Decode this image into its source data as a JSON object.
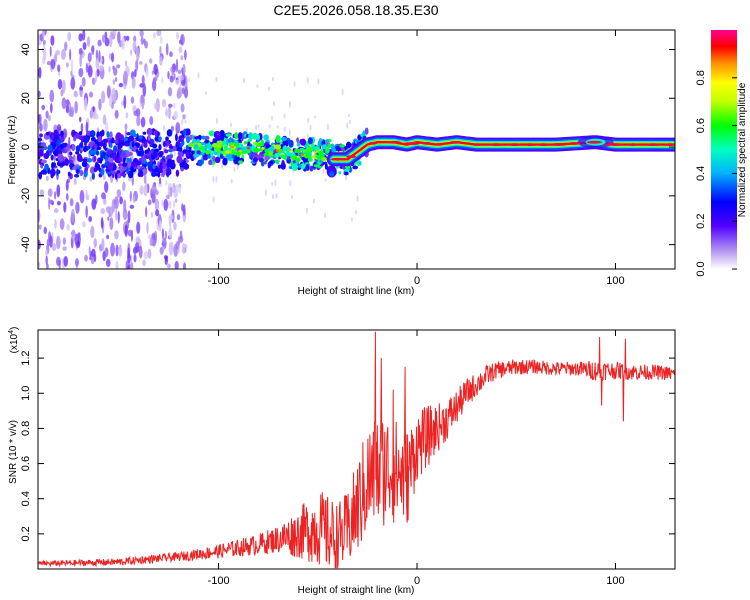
{
  "page_title": "C2E5.2026.058.18.35.E30",
  "chart_data": [
    {
      "type": "heatmap",
      "name": "spectrogram",
      "title": "C2E5.2026.058.18.35.E30",
      "xlabel": "Height of straight line (km)",
      "ylabel": "Frequency (Hz)",
      "xlim": [
        -191,
        130
      ],
      "ylim": [
        -50,
        48
      ],
      "xticks": [
        -100,
        0,
        100
      ],
      "yticks": [
        -40,
        -20,
        0,
        20,
        40
      ],
      "xtick_labels": [
        "-100",
        "0",
        "100"
      ],
      "ytick_labels": [
        "-40",
        "-20",
        "0",
        "20",
        "40"
      ],
      "colorbar": {
        "label": "Normalized spectral amplitude",
        "range": [
          0.0,
          1.0
        ],
        "ticks": [
          0.0,
          0.2,
          0.4,
          0.6,
          0.8
        ],
        "tick_labels": [
          "0.0",
          "0.2",
          "0.4",
          "0.6",
          "0.8"
        ],
        "colors": [
          "#ffffff",
          "#b090f0",
          "#5000ff",
          "#0000ff",
          "#00b0ff",
          "#00ffc0",
          "#00ff00",
          "#c0ff00",
          "#ffff00",
          "#ff9000",
          "#ff0000",
          "#ff0090"
        ]
      },
      "ridge": {
        "x": [
          -191,
          -150,
          -120,
          -100,
          -80,
          -60,
          -50,
          -45,
          -42,
          -35,
          -30,
          -25,
          -20,
          -12,
          -5,
          0,
          10,
          20,
          30,
          50,
          70,
          90,
          100,
          110,
          130
        ],
        "freq": [
          -3,
          -3,
          -2,
          0,
          -1,
          -3,
          -3,
          -3,
          -5,
          -5,
          -2,
          1,
          2,
          2,
          1,
          2,
          1,
          2,
          1,
          1,
          1,
          2,
          1,
          1,
          1
        ]
      }
    },
    {
      "type": "line",
      "name": "snr",
      "xlabel": "Height of straight line (km)",
      "ylabel": "SNR (10 * v/v)",
      "y_multiplier": "(x10",
      "y_multiplier_exponent": "4",
      "y_multiplier_close": ")",
      "xlim": [
        -191,
        130
      ],
      "ylim": [
        0.0,
        1.36
      ],
      "xticks": [
        -100,
        0,
        100
      ],
      "yticks": [
        0.2,
        0.4,
        0.6,
        0.8,
        1.0,
        1.2
      ],
      "xtick_labels": [
        "-100",
        "0",
        "100"
      ],
      "ytick_labels": [
        "0.2",
        "0.4",
        "0.6",
        "0.8",
        "1.0",
        "1.2"
      ],
      "color": "#ee2222",
      "trend": {
        "x": [
          -191,
          -150,
          -120,
          -100,
          -80,
          -70,
          -60,
          -55,
          -50,
          -45,
          -40,
          -35,
          -30,
          -25,
          -20,
          -15,
          -10,
          -5,
          0,
          5,
          10,
          15,
          20,
          25,
          30,
          35,
          40,
          50,
          60,
          70,
          80,
          90,
          100,
          110,
          120,
          130
        ],
        "y": [
          0.03,
          0.04,
          0.07,
          0.1,
          0.14,
          0.17,
          0.2,
          0.22,
          0.24,
          0.2,
          0.18,
          0.22,
          0.35,
          0.5,
          0.55,
          0.58,
          0.55,
          0.52,
          0.7,
          0.75,
          0.8,
          0.85,
          0.92,
          1.0,
          1.05,
          1.1,
          1.13,
          1.15,
          1.15,
          1.14,
          1.14,
          1.13,
          1.13,
          1.12,
          1.12,
          1.11
        ]
      },
      "noise": {
        "x": [
          -191,
          -120,
          -100,
          -80,
          -70,
          -60,
          -55,
          -50,
          -45,
          -40,
          -35,
          -30,
          -25,
          -20,
          -15,
          -10,
          -5,
          0,
          5,
          10,
          20,
          30,
          40,
          60,
          80,
          90,
          100,
          130
        ],
        "amp": [
          0.015,
          0.025,
          0.04,
          0.06,
          0.08,
          0.14,
          0.18,
          0.22,
          0.22,
          0.2,
          0.22,
          0.28,
          0.32,
          0.35,
          0.32,
          0.3,
          0.28,
          0.2,
          0.18,
          0.14,
          0.1,
          0.07,
          0.05,
          0.04,
          0.04,
          0.06,
          0.05,
          0.04
        ]
      },
      "spikes": [
        {
          "x": -21,
          "y": 1.35
        },
        {
          "x": -18,
          "y": 1.2
        },
        {
          "x": -12,
          "y": 1.02
        },
        {
          "x": -6,
          "y": 1.15
        },
        {
          "x": 92,
          "y": 1.32
        },
        {
          "x": 93,
          "y": 0.93
        },
        {
          "x": 104,
          "y": 0.84
        },
        {
          "x": 105,
          "y": 1.31
        }
      ]
    }
  ]
}
